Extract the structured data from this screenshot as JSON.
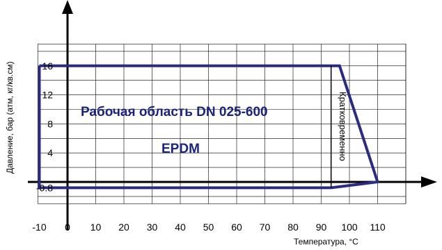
{
  "chart_data": {
    "type": "area",
    "xlabel": "Температура, °С",
    "ylabel": "Давление, бар (атм, кг/кв.см)",
    "x_ticks": [
      "-10",
      "0",
      "10",
      "20",
      "30",
      "40",
      "50",
      "60",
      "70",
      "80",
      "90",
      "100",
      "110"
    ],
    "y_ticks": [
      "16",
      "12",
      "8",
      "4",
      "-0.8"
    ],
    "xlim": [
      -10,
      120
    ],
    "ylim": [
      -3,
      19
    ],
    "grid": true,
    "region_label": "Рабочая область DN 025-600",
    "material_label": "EPDM",
    "short_term_label": "Кратковременно",
    "series": [
      {
        "points": [
          [
            -10,
            16
          ],
          [
            96.5,
            16
          ],
          [
            110,
            0
          ],
          [
            93.5,
            -0.8
          ],
          [
            -10,
            -0.8
          ],
          [
            -10,
            16
          ]
        ],
        "color": "#2b2b84"
      }
    ],
    "short_term_boundary": {
      "x": 93.5,
      "y_from": -0.8,
      "y_to": 16
    }
  }
}
